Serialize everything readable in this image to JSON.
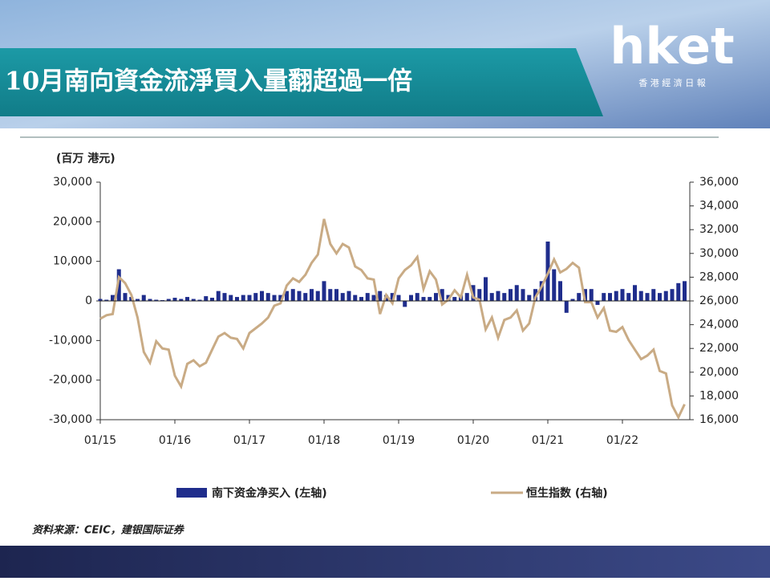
{
  "header": {
    "title": "10月南向資金流淨買入量翻超過一倍",
    "logo": "hket",
    "logo_sub": "香 港 經 濟 日 報"
  },
  "chart_data": {
    "type": "bar",
    "y_label": "(百万 港元)",
    "source": "资料来源：CEIC，建银国际证券",
    "x": [
      "01/15",
      "02/15",
      "03/15",
      "04/15",
      "05/15",
      "06/15",
      "07/15",
      "08/15",
      "09/15",
      "10/15",
      "11/15",
      "12/15",
      "01/16",
      "02/16",
      "03/16",
      "04/16",
      "05/16",
      "06/16",
      "07/16",
      "08/16",
      "09/16",
      "10/16",
      "11/16",
      "12/16",
      "01/17",
      "02/17",
      "03/17",
      "04/17",
      "05/17",
      "06/17",
      "07/17",
      "08/17",
      "09/17",
      "10/17",
      "11/17",
      "12/17",
      "01/18",
      "02/18",
      "03/18",
      "04/18",
      "05/18",
      "06/18",
      "07/18",
      "08/18",
      "09/18",
      "10/18",
      "11/18",
      "12/18",
      "01/19",
      "02/19",
      "03/19",
      "04/19",
      "05/19",
      "06/19",
      "07/19",
      "08/19",
      "09/19",
      "10/19",
      "11/19",
      "12/19",
      "01/20",
      "02/20",
      "03/20",
      "04/20",
      "05/20",
      "06/20",
      "07/20",
      "08/20",
      "09/20",
      "10/20",
      "11/20",
      "12/20",
      "01/21",
      "02/21",
      "03/21",
      "04/21",
      "05/21",
      "06/21",
      "07/21",
      "08/21",
      "09/21",
      "10/21",
      "11/21",
      "12/21",
      "01/22",
      "02/22",
      "03/22",
      "04/22",
      "05/22",
      "06/22",
      "07/22",
      "08/22",
      "09/22",
      "10/22",
      "11/22"
    ],
    "series": [
      {
        "name": "南下资金净买入 (左轴)",
        "color": "#1f2d8c",
        "axis": "y",
        "type": "bar",
        "values": [
          500,
          300,
          1500,
          8000,
          2000,
          1000,
          500,
          1500,
          500,
          300,
          200,
          500,
          800,
          500,
          1000,
          500,
          300,
          1200,
          800,
          2500,
          2000,
          1500,
          1000,
          1500,
          1500,
          2000,
          2500,
          2000,
          1500,
          1500,
          2500,
          3000,
          2500,
          2000,
          3000,
          2500,
          5000,
          3000,
          3000,
          2000,
          2500,
          1500,
          1000,
          2000,
          1500,
          2500,
          1500,
          2000,
          1500,
          -1500,
          1500,
          2000,
          1000,
          1000,
          2000,
          3000,
          1500,
          1000,
          1500,
          2000,
          4000,
          3000,
          6000,
          2000,
          2500,
          2000,
          3000,
          4000,
          3000,
          1500,
          3000,
          5000,
          15000,
          8000,
          5000,
          -3000,
          500,
          2000,
          3000,
          3000,
          -1000,
          2000,
          2000,
          2500,
          3000,
          2000,
          4000,
          2500,
          2000,
          3000,
          2000,
          2500,
          3000,
          4500,
          5000
        ]
      },
      {
        "name": "恒生指数 (右轴)",
        "color": "#c9ab85",
        "axis": "y2",
        "type": "line",
        "values": [
          24500,
          24800,
          24900,
          28000,
          27500,
          26500,
          24600,
          21700,
          20800,
          22600,
          22000,
          21900,
          19700,
          18800,
          20700,
          21000,
          20500,
          20800,
          21900,
          23000,
          23300,
          22900,
          22800,
          22000,
          23300,
          23700,
          24100,
          24600,
          25600,
          25800,
          27300,
          27900,
          27600,
          28200,
          29200,
          29900,
          32900,
          30800,
          30000,
          30800,
          30500,
          28900,
          28600,
          27900,
          27800,
          24900,
          26500,
          25800,
          27900,
          28600,
          29000,
          29700,
          27000,
          28500,
          27800,
          25700,
          26100,
          26900,
          26300,
          28200,
          26300,
          26100,
          23600,
          24600,
          22900,
          24400,
          24600,
          25200,
          23500,
          24100,
          26300,
          27200,
          28300,
          29500,
          28400,
          28700,
          29200,
          28800,
          25900,
          25900,
          24600,
          25400,
          23500,
          23400,
          23800,
          22700,
          21900,
          21100,
          21400,
          21900,
          20100,
          19900,
          17200,
          16200,
          17300
        ]
      }
    ],
    "ylim": [
      -30000,
      30000
    ],
    "yticks": [
      {
        "value": -30000,
        "label": "-30,000"
      },
      {
        "value": -20000,
        "label": "-20,000"
      },
      {
        "value": -10000,
        "label": "-10,000"
      },
      0,
      {
        "value": 10000,
        "label": "10,000"
      },
      {
        "value": 20000,
        "label": "20,000"
      },
      {
        "value": 30000,
        "label": "30,000"
      }
    ],
    "y2lim": [
      16000,
      36000
    ],
    "y2ticks": [
      {
        "value": 16000,
        "label": "16,000"
      },
      {
        "value": 18000,
        "label": "18,000"
      },
      {
        "value": 20000,
        "label": "20,000"
      },
      {
        "value": 22000,
        "label": "22,000"
      },
      {
        "value": 24000,
        "label": "24,000"
      },
      {
        "value": 26000,
        "label": "26,000"
      },
      {
        "value": 28000,
        "label": "28,000"
      },
      {
        "value": 30000,
        "label": "30,000"
      },
      {
        "value": 32000,
        "label": "32,000"
      },
      {
        "value": 34000,
        "label": "34,000"
      },
      {
        "value": 36000,
        "label": "36,000"
      }
    ],
    "legend": "bottom"
  }
}
